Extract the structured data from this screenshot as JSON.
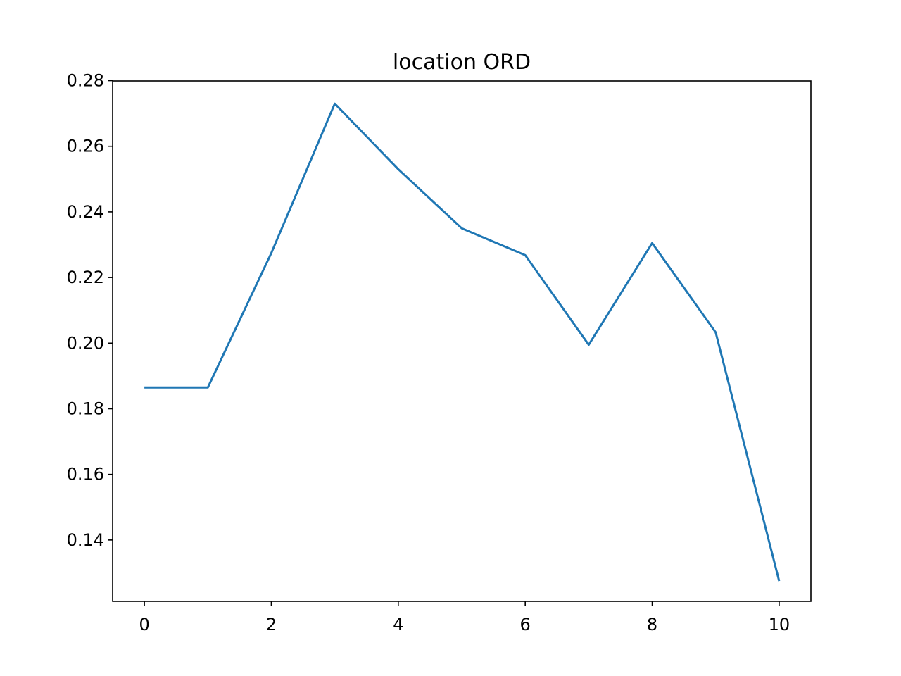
{
  "chart_data": {
    "type": "line",
    "title": "location ORD",
    "xlabel": "",
    "ylabel": "",
    "xlim": [
      -0.5,
      10.5
    ],
    "ylim": [
      0.1213,
      0.2799
    ],
    "xticks": [
      0,
      2,
      4,
      6,
      8,
      10
    ],
    "xtick_labels": [
      "0",
      "2",
      "4",
      "6",
      "8",
      "10"
    ],
    "yticks": [
      0.14,
      0.16,
      0.18,
      0.2,
      0.22,
      0.24,
      0.26,
      0.28
    ],
    "ytick_labels": [
      "0.14",
      "0.16",
      "0.18",
      "0.20",
      "0.22",
      "0.24",
      "0.26",
      "0.28"
    ],
    "grid": false,
    "series": [
      {
        "color": "#1f77b4",
        "x": [
          0,
          1,
          2,
          3,
          4,
          5,
          6,
          7,
          8,
          9,
          10
        ],
        "y": [
          0.1865,
          0.1865,
          0.2275,
          0.273,
          0.253,
          0.235,
          0.2268,
          0.1995,
          0.2305,
          0.2033,
          0.1275
        ]
      }
    ]
  }
}
